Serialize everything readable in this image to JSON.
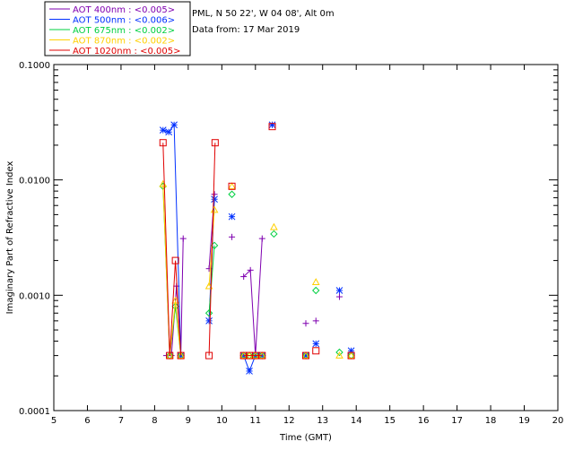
{
  "site_line": "PML, N 50 22', W 04 08', Alt 0m",
  "date_line": "Data from: 17 Mar 2019",
  "chart_data": {
    "type": "scatter",
    "title": "",
    "xlabel": "Time (GMT)",
    "ylabel": "Imaginary Part of Refractive Index",
    "xlim": [
      5,
      20
    ],
    "ylim": [
      0.0001,
      0.1
    ],
    "y_scale": "log",
    "x_ticks": [
      "5",
      "6",
      "7",
      "8",
      "9",
      "10",
      "11",
      "12",
      "13",
      "14",
      "15",
      "16",
      "17",
      "18",
      "19",
      "20"
    ],
    "y_ticks": [
      {
        "value": 0.0001,
        "label": "0.0001"
      },
      {
        "value": 0.001,
        "label": "0.0010"
      },
      {
        "value": 0.01,
        "label": "0.0100"
      },
      {
        "value": 0.1,
        "label": "0.1000"
      }
    ],
    "legend_position": "top-left, outside plot",
    "series": [
      {
        "name": "AOT  400nm : <0.005>",
        "color": "#7f00b0",
        "marker": "plus",
        "segments": [
          [
            [
              8.35,
              0.0003
            ],
            [
              8.5,
              0.0003
            ],
            [
              8.65,
              0.0012
            ],
            [
              8.78,
              0.0003
            ],
            [
              8.85,
              0.0031
            ]
          ],
          [
            [
              9.62,
              0.0017
            ],
            [
              9.78,
              0.0075
            ]
          ],
          [
            [
              10.65,
              0.00145
            ],
            [
              10.85,
              0.00165
            ],
            [
              11.0,
              0.0003
            ],
            [
              11.2,
              0.0031
            ]
          ]
        ],
        "points": [
          [
            10.3,
            0.0032
          ],
          [
            12.5,
            0.00057
          ],
          [
            12.8,
            0.0006
          ],
          [
            13.5,
            0.00097
          ],
          [
            11.5,
            0.03
          ]
        ]
      },
      {
        "name": "AOT  500nm : <0.006>",
        "color": "#0030ff",
        "marker": "star",
        "segments": [
          [
            [
              8.25,
              0.027
            ],
            [
              8.42,
              0.026
            ],
            [
              8.58,
              0.03
            ],
            [
              8.78,
              0.0003
            ]
          ],
          [
            [
              9.62,
              0.0006
            ],
            [
              9.78,
              0.0068
            ]
          ],
          [
            [
              10.65,
              0.0003
            ],
            [
              10.82,
              0.00022
            ],
            [
              11.0,
              0.0003
            ],
            [
              11.2,
              0.0003
            ]
          ]
        ],
        "points": [
          [
            10.3,
            0.0048
          ],
          [
            11.5,
            0.03
          ],
          [
            12.5,
            0.0003
          ],
          [
            12.8,
            0.00038
          ],
          [
            13.5,
            0.0011
          ],
          [
            13.85,
            0.00033
          ]
        ]
      },
      {
        "name": "AOT  675nm : <0.002>",
        "color": "#00d040",
        "marker": "diamond",
        "segments": [
          [
            [
              8.25,
              0.0088
            ],
            [
              8.45,
              0.0003
            ],
            [
              8.62,
              0.0008
            ],
            [
              8.78,
              0.0003
            ]
          ],
          [
            [
              9.62,
              0.0007
            ],
            [
              9.78,
              0.0027
            ]
          ],
          [
            [
              10.65,
              0.0003
            ],
            [
              10.82,
              0.0003
            ],
            [
              11.0,
              0.0003
            ],
            [
              11.2,
              0.0003
            ]
          ]
        ],
        "points": [
          [
            10.3,
            0.0075
          ],
          [
            11.55,
            0.0034
          ],
          [
            12.5,
            0.0003
          ],
          [
            12.8,
            0.0011
          ],
          [
            13.5,
            0.00032
          ],
          [
            13.85,
            0.0003
          ]
        ]
      },
      {
        "name": "AOT  870nm : <0.002>",
        "color": "#ffd000",
        "marker": "triangle",
        "segments": [
          [
            [
              8.25,
              0.0092
            ],
            [
              8.45,
              0.0003
            ],
            [
              8.62,
              0.0009
            ],
            [
              8.78,
              0.0003
            ]
          ],
          [
            [
              9.62,
              0.0012
            ],
            [
              9.78,
              0.0055
            ]
          ],
          [
            [
              10.65,
              0.0003
            ],
            [
              10.82,
              0.0003
            ],
            [
              11.0,
              0.0003
            ],
            [
              11.2,
              0.0003
            ]
          ]
        ],
        "points": [
          [
            10.3,
            0.0088
          ],
          [
            11.55,
            0.0039
          ],
          [
            12.5,
            0.0003
          ],
          [
            12.8,
            0.0013
          ],
          [
            13.5,
            0.0003
          ],
          [
            13.85,
            0.0003
          ]
        ]
      },
      {
        "name": "AOT 1020nm : <0.005>",
        "color": "#e00000",
        "marker": "square",
        "segments": [
          [
            [
              8.25,
              0.021
            ],
            [
              8.45,
              0.0003
            ],
            [
              8.62,
              0.002
            ],
            [
              8.78,
              0.0003
            ]
          ],
          [
            [
              9.62,
              0.0003
            ],
            [
              9.8,
              0.021
            ]
          ],
          [
            [
              10.65,
              0.0003
            ],
            [
              10.82,
              0.0003
            ],
            [
              11.0,
              0.0003
            ],
            [
              11.2,
              0.0003
            ]
          ]
        ],
        "points": [
          [
            10.3,
            0.0088
          ],
          [
            11.5,
            0.029
          ],
          [
            12.5,
            0.0003
          ],
          [
            12.8,
            0.00033
          ],
          [
            13.85,
            0.0003
          ]
        ]
      }
    ]
  }
}
